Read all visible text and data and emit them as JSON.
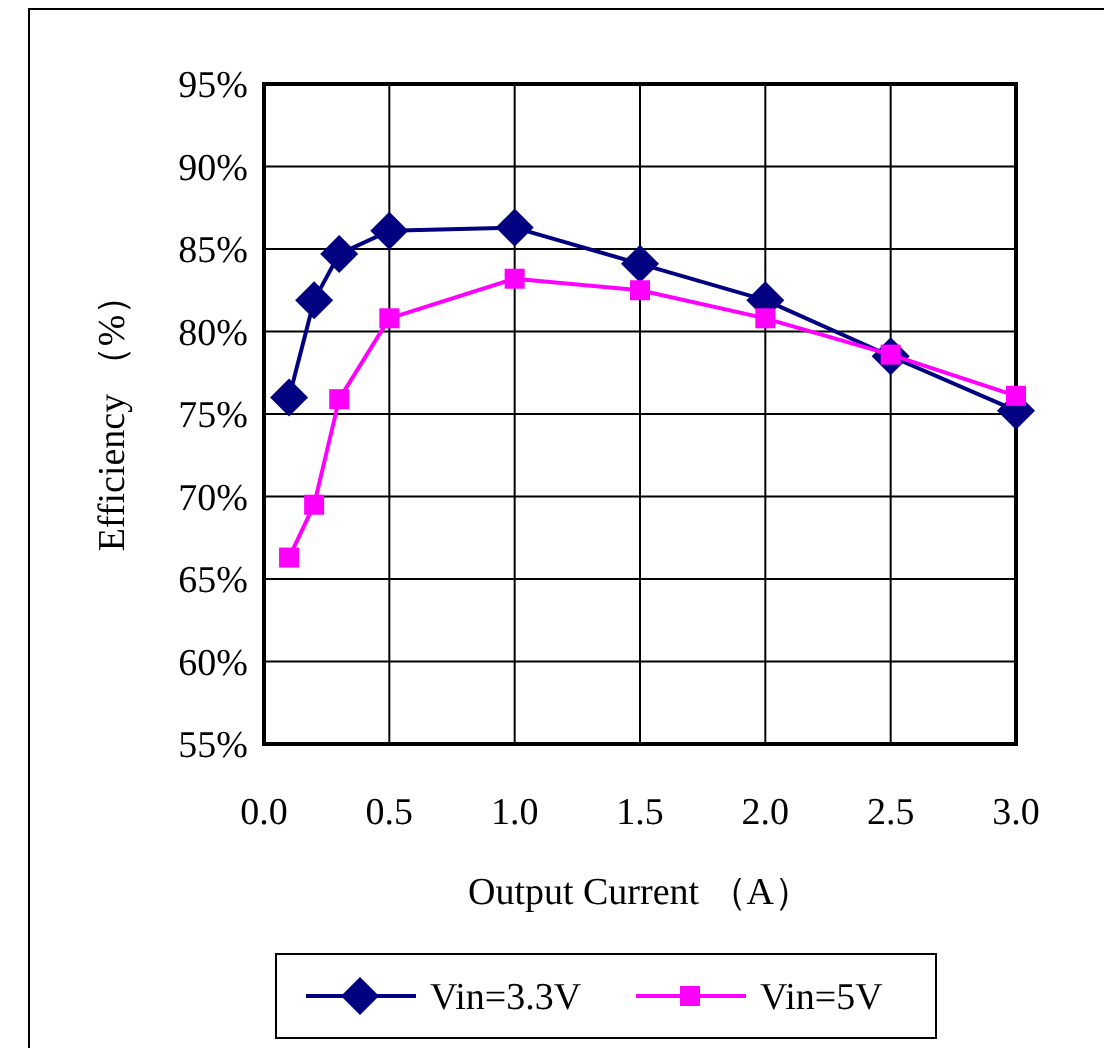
{
  "chart_data": {
    "type": "line",
    "xlabel": "Output Current （A）",
    "ylabel": "Efficiency （%）",
    "xlim": [
      0,
      3
    ],
    "ylim": [
      55,
      95
    ],
    "xticks": [
      {
        "value": 0,
        "label": "0.0"
      },
      {
        "value": 0.5,
        "label": "0.5"
      },
      {
        "value": 1,
        "label": "1.0"
      },
      {
        "value": 1.5,
        "label": "1.5"
      },
      {
        "value": 2,
        "label": "2.0"
      },
      {
        "value": 2.5,
        "label": "2.5"
      },
      {
        "value": 3,
        "label": "3.0"
      }
    ],
    "yticks": [
      {
        "value": 55,
        "label": "55%"
      },
      {
        "value": 60,
        "label": "60%"
      },
      {
        "value": 65,
        "label": "65%"
      },
      {
        "value": 70,
        "label": "70%"
      },
      {
        "value": 75,
        "label": "75%"
      },
      {
        "value": 80,
        "label": "80%"
      },
      {
        "value": 85,
        "label": "85%"
      },
      {
        "value": 90,
        "label": "90%"
      },
      {
        "value": 95,
        "label": "95%"
      }
    ],
    "grid": true,
    "legend": "bottom",
    "series": [
      {
        "name": "Vin=3.3V",
        "color": "#000080",
        "marker": "diamond",
        "x": [
          0.1,
          0.2,
          0.3,
          0.5,
          1.0,
          1.5,
          2.0,
          2.5,
          3.0
        ],
        "values": [
          76.0,
          81.9,
          84.7,
          86.1,
          86.3,
          84.1,
          81.9,
          78.5,
          75.2
        ]
      },
      {
        "name": "Vin=5V",
        "color": "#ff00ff",
        "marker": "square",
        "x": [
          0.1,
          0.2,
          0.3,
          0.5,
          1.0,
          1.5,
          2.0,
          2.5,
          3.0
        ],
        "values": [
          66.3,
          69.5,
          75.9,
          80.8,
          83.2,
          82.5,
          80.8,
          78.6,
          76.1
        ]
      }
    ]
  }
}
